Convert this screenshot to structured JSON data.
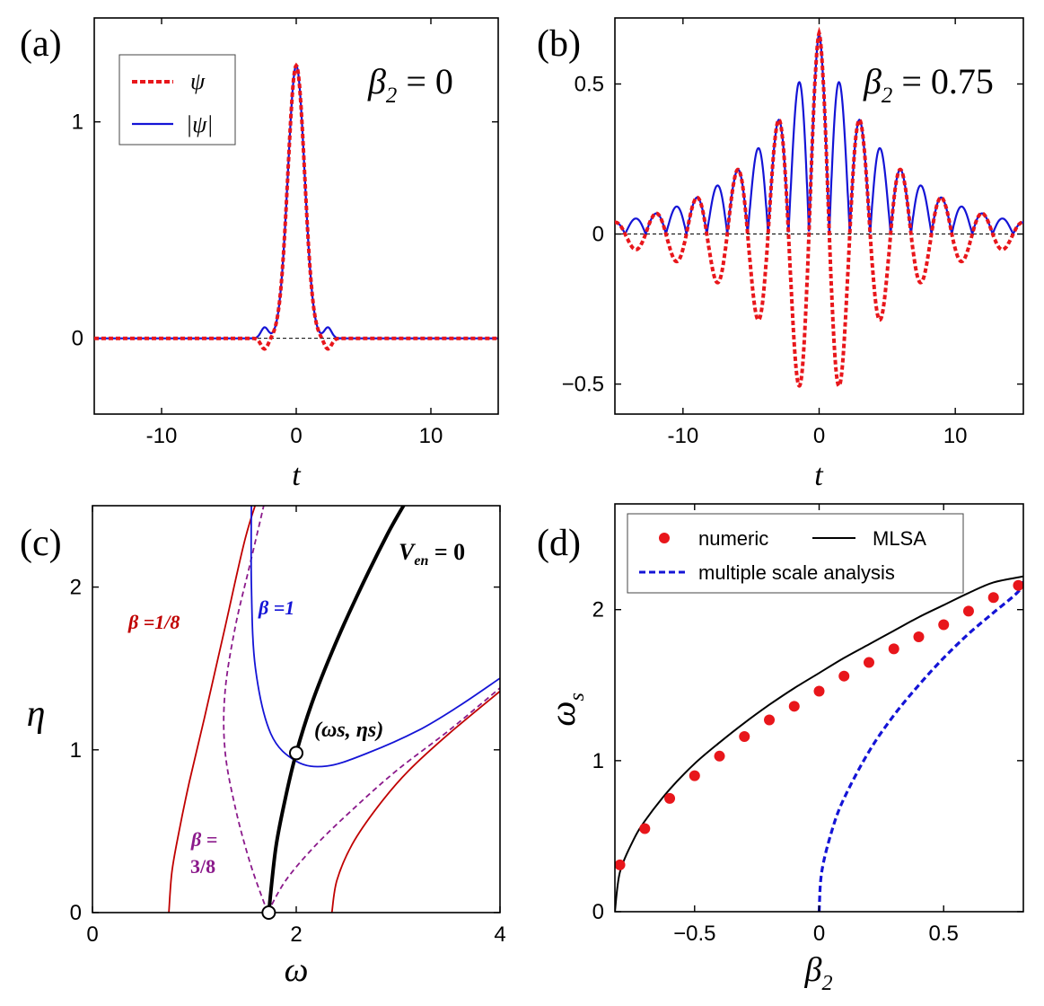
{
  "chart_data": [
    {
      "panel": "(a)",
      "type": "line",
      "xlabel": "t",
      "ylabel": "",
      "xlim": [
        -15,
        15
      ],
      "ylim": [
        -0.35,
        1.48
      ],
      "xticks": [
        -10,
        0,
        10
      ],
      "xtick_labels": [
        "-10",
        "0",
        "10"
      ],
      "yticks": [
        0,
        1
      ],
      "ytick_labels": [
        "0",
        "1"
      ],
      "annotation": {
        "symbol": "β",
        "sub": "2",
        "rest": " = 0"
      },
      "legend": {
        "position": "top-left",
        "entries": [
          {
            "label": "ψ",
            "style": "dotted-red"
          },
          {
            "label": "|ψ|",
            "style": "solid-blue"
          }
        ]
      },
      "colors": {
        "psi": "#e8161b",
        "abs": "#1414d6"
      },
      "series": [
        {
          "name": "ψ",
          "x": [
            -15,
            -4,
            -3.2,
            -2.6,
            -2.2,
            -1.9,
            -1.5,
            -1.0,
            -0.5,
            0,
            0.5,
            1.0,
            1.5,
            1.9,
            2.2,
            2.6,
            3.2,
            4,
            15
          ],
          "y": [
            0,
            0,
            -0.02,
            -0.05,
            -0.05,
            -0.02,
            0.08,
            0.42,
            1.0,
            1.26,
            1.0,
            0.42,
            0.08,
            -0.02,
            -0.05,
            -0.05,
            -0.02,
            0,
            0
          ]
        },
        {
          "name": "|ψ|",
          "x": [
            -15,
            -4,
            -3.2,
            -2.6,
            -2.2,
            -1.9,
            -1.5,
            -1.0,
            -0.5,
            0,
            0.5,
            1.0,
            1.5,
            1.9,
            2.2,
            2.6,
            3.2,
            4,
            15
          ],
          "y": [
            0,
            0,
            0.02,
            0.05,
            0.05,
            0.02,
            0.08,
            0.42,
            1.0,
            1.26,
            1.0,
            0.42,
            0.08,
            0.02,
            0.05,
            0.05,
            0.02,
            0,
            0
          ]
        }
      ]
    },
    {
      "panel": "(b)",
      "type": "line",
      "xlabel": "t",
      "ylabel": "",
      "xlim": [
        -15,
        15
      ],
      "ylim": [
        -0.6,
        0.72
      ],
      "xticks": [
        -10,
        0,
        10
      ],
      "xtick_labels": [
        "-10",
        "0",
        "10"
      ],
      "yticks": [
        -0.5,
        0,
        0.5
      ],
      "ytick_labels": [
        "−0.5",
        "0",
        "0.5"
      ],
      "annotation": {
        "symbol": "β",
        "sub": "2",
        "rest": " = 0.75"
      },
      "colors": {
        "psi": "#e8161b",
        "abs": "#1414d6"
      },
      "series": [
        {
          "name": "ψ (dotted envelope model)",
          "amp": 0.67,
          "decay": 0.19,
          "period": 3.0
        },
        {
          "name": "|ψ| (solid envelope model)",
          "amp": 0.67,
          "decay": 0.19,
          "period": 3.0
        }
      ]
    },
    {
      "panel": "(c)",
      "type": "line",
      "xlabel": "ω",
      "ylabel": "η",
      "xlim": [
        0,
        4
      ],
      "ylim": [
        0,
        2.5
      ],
      "xticks": [
        0,
        2,
        4
      ],
      "xtick_labels": [
        "0",
        "2",
        "4"
      ],
      "yticks": [
        0,
        1,
        2
      ],
      "ytick_labels": [
        "0",
        "1",
        "2"
      ],
      "colors": {
        "b18": "#c00000",
        "b38": "#8b1a8b",
        "b1": "#1414d6",
        "ven": "#000000"
      },
      "curve_labels": {
        "b18": "β =1/8",
        "b38_top": "β =",
        "b38_bottom": "3/8",
        "b1": "β =1",
        "ven_main": "V",
        "ven_sub": "en",
        "ven_rest": " = 0",
        "point": "(ωs, ηs)"
      },
      "series": [
        {
          "name": "β =1/8 left",
          "x": [
            0.75,
            0.78,
            0.85,
            0.95,
            1.1,
            1.3,
            1.5,
            1.65
          ],
          "y": [
            0,
            0.25,
            0.5,
            0.8,
            1.2,
            1.75,
            2.3,
            2.6
          ]
        },
        {
          "name": "β =1/8 right",
          "x": [
            2.35,
            2.4,
            2.55,
            2.8,
            3.1,
            3.5,
            4.0
          ],
          "y": [
            0,
            0.2,
            0.42,
            0.65,
            0.87,
            1.1,
            1.36
          ]
        },
        {
          "name": "β =3/8 left",
          "x": [
            1.72,
            1.55,
            1.4,
            1.3,
            1.3,
            1.4,
            1.55,
            1.7
          ],
          "y": [
            0,
            0.3,
            0.65,
            1.0,
            1.35,
            1.75,
            2.15,
            2.55
          ]
        },
        {
          "name": "β =3/8 right",
          "x": [
            1.72,
            1.9,
            2.2,
            2.6,
            3.0,
            3.5,
            4.0
          ],
          "y": [
            0,
            0.2,
            0.42,
            0.66,
            0.88,
            1.12,
            1.38
          ]
        },
        {
          "name": "β =1",
          "x": [
            1.56,
            1.56,
            1.6,
            1.75,
            2.0,
            2.3,
            2.7,
            3.2,
            3.6,
            4.0
          ],
          "y": [
            2.55,
            2.0,
            1.5,
            1.1,
            0.93,
            0.9,
            0.98,
            1.12,
            1.27,
            1.44
          ]
        },
        {
          "name": "V_en = 0",
          "x": [
            1.73,
            1.8,
            1.9,
            2.0,
            2.15,
            2.35,
            2.6,
            2.9,
            3.1
          ],
          "y": [
            0,
            0.4,
            0.72,
            0.98,
            1.28,
            1.6,
            1.95,
            2.33,
            2.55
          ]
        }
      ],
      "points": [
        {
          "x": 1.73,
          "y": 0
        },
        {
          "x": 2.0,
          "y": 0.98
        }
      ]
    },
    {
      "panel": "(d)",
      "type": "scatter",
      "xlabel": "β2",
      "ylabel": "ωs",
      "xlim": [
        -0.82,
        0.82
      ],
      "ylim": [
        0,
        2.7
      ],
      "xticks": [
        -0.5,
        0,
        0.5
      ],
      "xtick_labels": [
        "−0.5",
        "0",
        "0.5"
      ],
      "yticks": [
        0,
        1,
        2
      ],
      "ytick_labels": [
        "0",
        "1",
        "2"
      ],
      "legend": {
        "position": "top",
        "entries": [
          {
            "label": "numeric",
            "style": "red-dot"
          },
          {
            "label": "MLSA",
            "style": "solid-black"
          },
          {
            "label": "multiple scale analysis",
            "style": "dashed-blue"
          }
        ]
      },
      "colors": {
        "numeric": "#e8161b",
        "mlsa": "#000000",
        "msa": "#1414d6"
      },
      "series": [
        {
          "name": "numeric",
          "x": [
            -0.8,
            -0.7,
            -0.6,
            -0.5,
            -0.4,
            -0.3,
            -0.2,
            -0.1,
            0.0,
            0.1,
            0.2,
            0.3,
            0.4,
            0.5,
            0.6,
            0.7,
            0.8
          ],
          "y": [
            0.31,
            0.55,
            0.75,
            0.9,
            1.03,
            1.16,
            1.27,
            1.36,
            1.46,
            1.56,
            1.65,
            1.74,
            1.82,
            1.9,
            1.99,
            2.08,
            2.16
          ]
        },
        {
          "name": "MLSA",
          "x": [
            -0.82,
            -0.8,
            -0.75,
            -0.7,
            -0.6,
            -0.5,
            -0.4,
            -0.3,
            -0.2,
            -0.1,
            0,
            0.1,
            0.2,
            0.3,
            0.4,
            0.5,
            0.6,
            0.7,
            0.82
          ],
          "y": [
            0,
            0.26,
            0.46,
            0.6,
            0.81,
            0.98,
            1.12,
            1.25,
            1.37,
            1.48,
            1.58,
            1.68,
            1.77,
            1.86,
            1.95,
            2.03,
            2.11,
            2.18,
            2.22
          ]
        },
        {
          "name": "multiple scale analysis",
          "x": [
            0,
            0.01,
            0.05,
            0.1,
            0.2,
            0.3,
            0.4,
            0.5,
            0.6,
            0.7,
            0.8,
            0.82
          ],
          "y": [
            0,
            0.26,
            0.53,
            0.75,
            1.06,
            1.3,
            1.5,
            1.68,
            1.84,
            1.98,
            2.12,
            2.2
          ]
        }
      ]
    }
  ]
}
